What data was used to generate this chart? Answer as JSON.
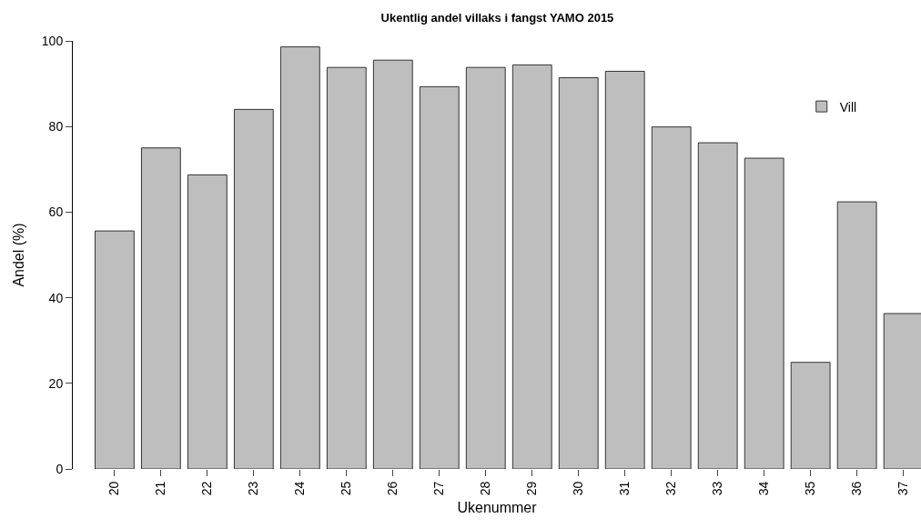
{
  "chart_data": {
    "type": "bar",
    "title": "Ukentlig andel villaks i fangst YAMO 2015",
    "xlabel": "Ukenummer",
    "ylabel": "Andel (%)",
    "categories": [
      "20",
      "21",
      "22",
      "23",
      "24",
      "25",
      "26",
      "27",
      "28",
      "29",
      "30",
      "31",
      "32",
      "33",
      "34",
      "35",
      "36",
      "37"
    ],
    "series": [
      {
        "name": "Vill",
        "color": "#bebebe",
        "values": [
          55.6,
          75.0,
          68.7,
          84.0,
          98.6,
          93.8,
          95.5,
          89.3,
          93.8,
          94.4,
          91.4,
          92.9,
          79.9,
          76.2,
          72.6,
          24.9,
          62.4,
          36.3
        ]
      }
    ],
    "ylim": [
      0,
      100
    ],
    "yticks": [
      0,
      20,
      40,
      60,
      80,
      100
    ],
    "legend": "top right"
  }
}
